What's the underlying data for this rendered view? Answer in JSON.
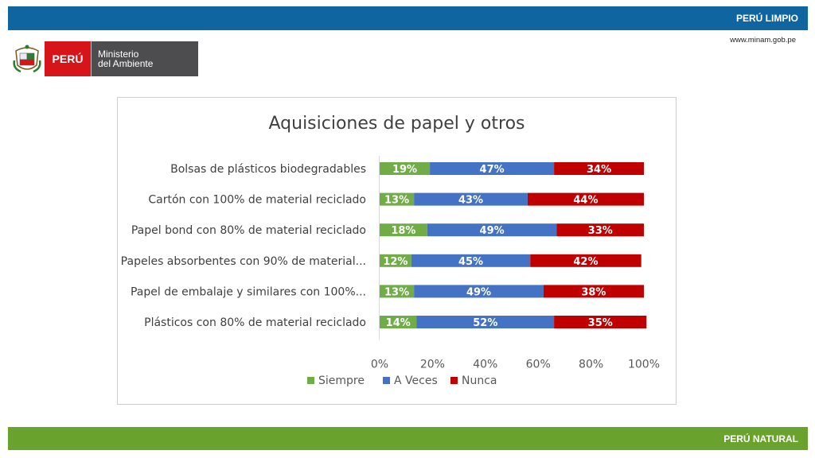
{
  "header": {
    "label": "PERÚ LIMPIO",
    "url": "www.minam.gob.pe",
    "color": "#0f65a0"
  },
  "logo": {
    "country": "PERÚ",
    "ministry_line1": "Ministerio",
    "ministry_line2": "del Ambiente"
  },
  "footer": {
    "label": "PERÚ NATURAL",
    "color": "#6aa22e"
  },
  "chart_data": {
    "type": "bar",
    "orientation": "horizontal",
    "stacked": "percent",
    "title": "Aquisiciones de papel y otros",
    "categories": [
      "Bolsas de plásticos biodegradables",
      "Cartón con 100% de material reciclado",
      "Papel bond con 80% de material reciclado",
      "Papeles absorbentes con 90% de material...",
      "Papel de embalaje y similares con 100%...",
      "Plásticos con 80% de material reciclado"
    ],
    "series": [
      {
        "name": "Siempre",
        "color": "#70ad47",
        "values": [
          19,
          13,
          18,
          12,
          13,
          14
        ]
      },
      {
        "name": "A Veces",
        "color": "#4472c4",
        "values": [
          47,
          43,
          49,
          45,
          49,
          52
        ]
      },
      {
        "name": "Nunca",
        "color": "#c00000",
        "values": [
          34,
          44,
          33,
          42,
          38,
          35
        ]
      }
    ],
    "x_ticks": [
      "0%",
      "20%",
      "40%",
      "60%",
      "80%",
      "100%"
    ],
    "xlim": [
      0,
      100
    ],
    "grid": false,
    "legend_position": "bottom"
  }
}
